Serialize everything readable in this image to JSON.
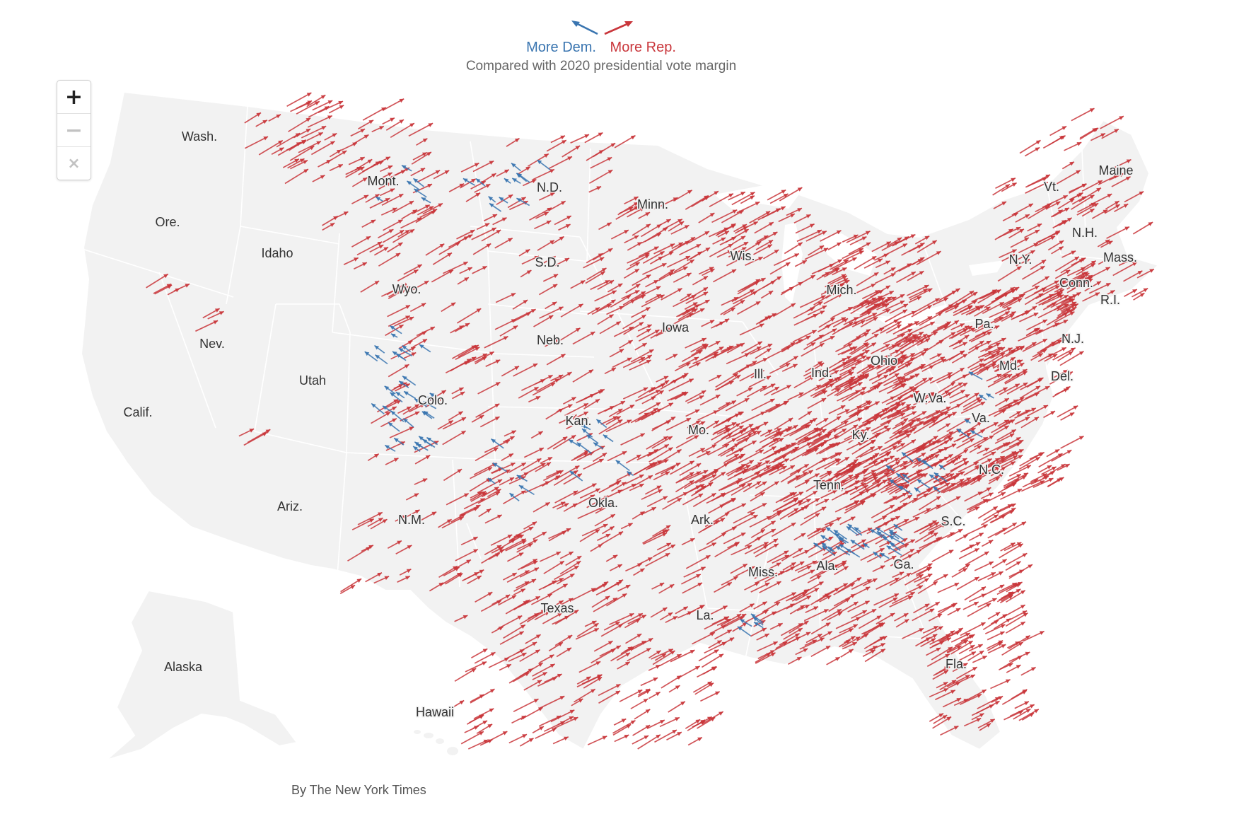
{
  "legend": {
    "dem_label": "More Dem.",
    "rep_label": "More Rep.",
    "subtitle": "Compared with 2020 presidential vote margin",
    "dem_color": "#3a75b0",
    "rep_color": "#c9363b"
  },
  "zoom_controls": {
    "zoom_in": "+",
    "zoom_out": "−",
    "reset": "×"
  },
  "credit": "By The New York Times",
  "map_colors": {
    "land": "#f2f2f2",
    "borders": "#ffffff"
  },
  "state_labels": {
    "wash": "Wash.",
    "ore": "Ore.",
    "calif": "Calif.",
    "idaho": "Idaho",
    "nev": "Nev.",
    "mont": "Mont.",
    "wyo": "Wyo.",
    "utah": "Utah",
    "ariz": "Ariz.",
    "colo": "Colo.",
    "nm": "N.M.",
    "nd": "N.D.",
    "sd": "S.D.",
    "neb": "Neb.",
    "kan": "Kan.",
    "okla": "Okla.",
    "texas": "Texas",
    "minn": "Minn.",
    "iowa": "Iowa",
    "mo": "Mo.",
    "ark": "Ark.",
    "la": "La.",
    "wis": "Wis.",
    "ill": "Ill.",
    "mich": "Mich.",
    "ind": "Ind.",
    "ohio": "Ohio",
    "ky": "Ky.",
    "tenn": "Tenn.",
    "miss": "Miss.",
    "ala": "Ala.",
    "ga": "Ga.",
    "fla": "Fla.",
    "sc": "S.C.",
    "nc": "N.C.",
    "va": "Va.",
    "wva": "W.Va.",
    "pa": "Pa.",
    "ny": "N.Y.",
    "vt": "Vt.",
    "nh": "N.H.",
    "maine": "Maine",
    "mass": "Mass.",
    "conn": "Conn.",
    "ri": "R.I.",
    "nj": "N.J.",
    "del": "Del.",
    "md": "Md.",
    "alaska": "Alaska",
    "hawaii": "Hawaii"
  }
}
